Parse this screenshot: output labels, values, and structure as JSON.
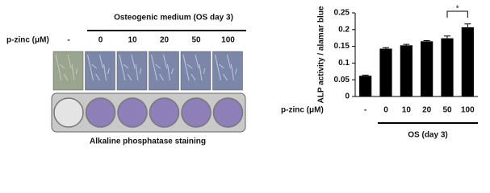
{
  "left_panel": {
    "header": "Osteogenic medium (OS day 3)",
    "row_label": "p-zinc (μM)",
    "doses": [
      "-",
      "0",
      "10",
      "20",
      "50",
      "100"
    ],
    "caption": "Alkaline phosphatase staining"
  },
  "chart_data": {
    "type": "bar",
    "ylabel": "ALP activity / alamar blue",
    "xlabel": "p-zinc (μM)",
    "group_label": "OS (day 3)",
    "categories": [
      "-",
      "0",
      "10",
      "20",
      "50",
      "100"
    ],
    "values": [
      0.062,
      0.143,
      0.153,
      0.165,
      0.174,
      0.207
    ],
    "errors": [
      0.002,
      0.003,
      0.003,
      0.002,
      0.007,
      0.01
    ],
    "color": "#000000",
    "ylim": [
      0,
      0.25
    ],
    "yticks": [
      0,
      0.05,
      0.1,
      0.15,
      0.2,
      0.25
    ],
    "annotations": [
      {
        "text": "*"
      }
    ]
  }
}
